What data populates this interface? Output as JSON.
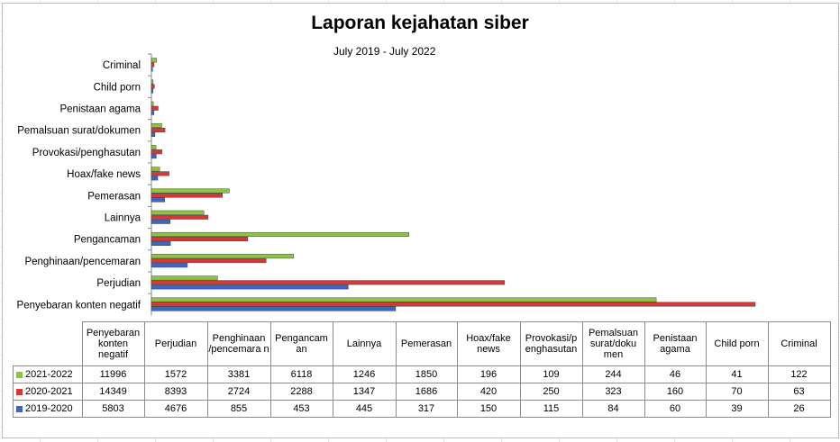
{
  "title": "Laporan kejahatan siber",
  "subtitle": "July 2019  - July 2022",
  "chart_data": {
    "type": "bar",
    "orientation": "horizontal",
    "categories": [
      "Penyebaran konten negatif",
      "Perjudian",
      "Penghinaan/pencemaran",
      "Pengancaman",
      "Lainnya",
      "Pemerasan",
      "Hoax/fake news",
      "Provokasi/penghasutan",
      "Pemalsuan surat/dokumen",
      "Penistaan agama",
      "Child porn",
      "Criminal"
    ],
    "table_headers": [
      "Penyebaran konten negatif",
      "Perjudian",
      "Penghinaan /pencemara n",
      "Pengancam an",
      "Lainnya",
      "Pemerasan",
      "Hoax/fake news",
      "Provokasi/p enghasutan",
      "Pemalsuan surat/doku men",
      "Penistaan agama",
      "Child porn",
      "Criminal"
    ],
    "series": [
      {
        "name": "2021-2022",
        "color": "#8cc63f",
        "values": [
          11996,
          1572,
          3381,
          6118,
          1246,
          1850,
          196,
          109,
          244,
          46,
          41,
          122
        ]
      },
      {
        "name": "2020-2021",
        "color": "#d23a3a",
        "values": [
          14349,
          8393,
          2724,
          2288,
          1347,
          1686,
          420,
          250,
          323,
          160,
          70,
          63
        ]
      },
      {
        "name": "2019-2020",
        "color": "#3a66c4",
        "values": [
          5803,
          4676,
          855,
          453,
          445,
          317,
          150,
          115,
          84,
          60,
          39,
          26
        ]
      }
    ],
    "grid": false,
    "legend": "data-table"
  }
}
